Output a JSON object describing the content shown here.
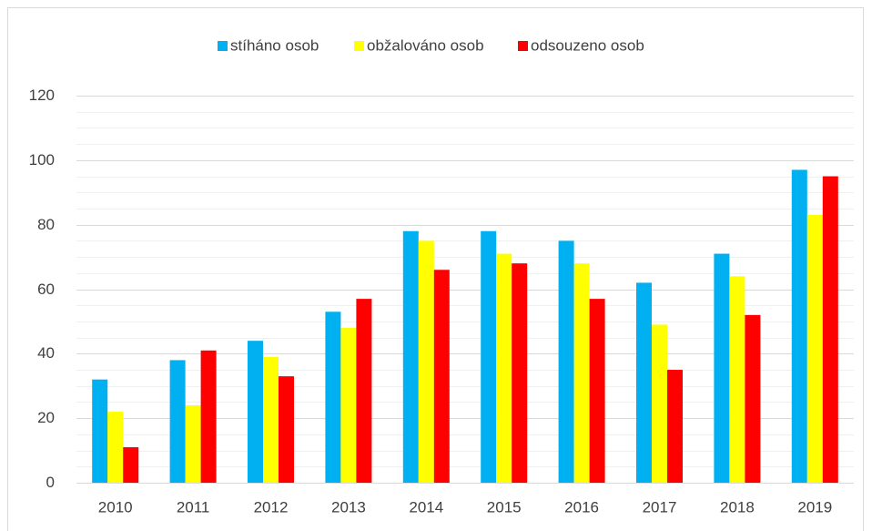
{
  "chart_data": {
    "type": "bar",
    "categories": [
      "2010",
      "2011",
      "2012",
      "2013",
      "2014",
      "2015",
      "2016",
      "2017",
      "2018",
      "2019"
    ],
    "series": [
      {
        "name": "stíháno osob",
        "color": "#00b0f0",
        "values": [
          32,
          38,
          44,
          53,
          78,
          78,
          75,
          62,
          71,
          97
        ]
      },
      {
        "name": "obžalováno osob",
        "color": "#ffff00",
        "values": [
          22,
          24,
          39,
          48,
          75,
          71,
          68,
          49,
          64,
          83
        ]
      },
      {
        "name": "odsouzeno osob",
        "color": "#ff0000",
        "values": [
          11,
          41,
          33,
          57,
          66,
          68,
          57,
          35,
          52,
          95
        ]
      }
    ],
    "ylim": [
      0,
      120
    ],
    "yticks": [
      0,
      20,
      40,
      60,
      80,
      100,
      120
    ],
    "yminorticks": [
      5,
      10,
      15,
      25,
      30,
      35,
      45,
      50,
      55,
      65,
      70,
      75,
      85,
      90,
      95,
      105,
      110,
      115
    ],
    "grid": true,
    "legend": "top"
  }
}
